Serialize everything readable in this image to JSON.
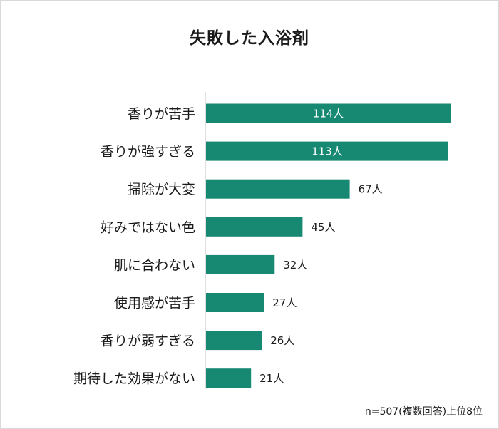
{
  "colors": {
    "bar": "#178872",
    "axis": "#bfbfbf",
    "inside_label": "#ffffff",
    "outside_label": "#1a1a1a"
  },
  "chart_data": {
    "type": "bar",
    "orientation": "horizontal",
    "title": "失敗した入浴剤",
    "categories": [
      "香りが苦手",
      "香りが強すぎる",
      "掃除が大変",
      "好みではない色",
      "肌に合わない",
      "使用感が苦手",
      "香りが弱すぎる",
      "期待した効果がない"
    ],
    "values": [
      114,
      113,
      67,
      45,
      32,
      27,
      26,
      21
    ],
    "value_labels": [
      "114人",
      "113人",
      "67人",
      "45人",
      "32人",
      "27人",
      "26人",
      "21人"
    ],
    "unit": "人",
    "xlim": [
      0,
      114
    ],
    "grid": false,
    "legend": "none",
    "note": "n=507(複数回答)上位8位"
  }
}
